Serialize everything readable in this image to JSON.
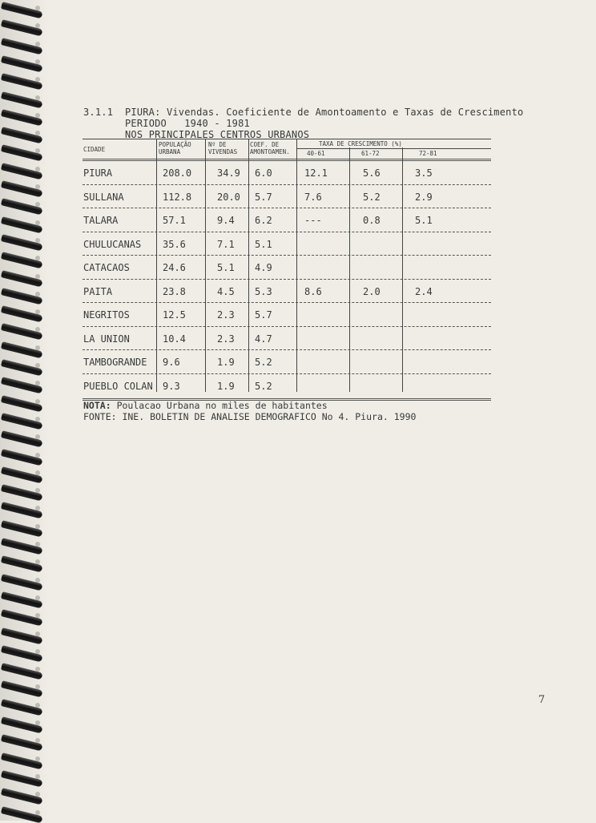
{
  "document": {
    "heading_number": "3.1.1",
    "heading": "PIURA: Vivendas. Coeficiente de Amontoamento e Taxas de Crescimento",
    "period": "PERIODO   1940 - 1981",
    "subtitle": "NOS PRINCIPALES CENTROS URBANOS",
    "page_number": "7"
  },
  "table": {
    "headers": {
      "cidade": "CIDADE",
      "populacao": [
        "POPULAÇÃO",
        "URBANA"
      ],
      "vivendas": [
        "Nº DE",
        "VIVENDAS"
      ],
      "coef": [
        "COEF. DE",
        "AMONTOAMEN."
      ],
      "taxa": "TAXA DE CRESCIMENTO (%)",
      "periods": [
        "40-61",
        "61-72",
        "72-81"
      ]
    },
    "rows": [
      {
        "cidade": "PIURA",
        "pop": "208.0",
        "viv": "34.9",
        "coef": "6.0",
        "t1": "12.1",
        "t2": "5.6",
        "t3": "3.5"
      },
      {
        "cidade": "SULLANA",
        "pop": "112.8",
        "viv": "20.0",
        "coef": "5.7",
        "t1": "7.6",
        "t2": "5.2",
        "t3": "2.9"
      },
      {
        "cidade": "TALARA",
        "pop": "57.1",
        "viv": "9.4",
        "coef": "6.2",
        "t1": "---",
        "t2": "0.8",
        "t3": "5.1"
      },
      {
        "cidade": "CHULUCANAS",
        "pop": "35.6",
        "viv": "7.1",
        "coef": "5.1",
        "t1": "",
        "t2": "",
        "t3": ""
      },
      {
        "cidade": "CATACAOS",
        "pop": "24.6",
        "viv": "5.1",
        "coef": "4.9",
        "t1": "",
        "t2": "",
        "t3": ""
      },
      {
        "cidade": "PAITA",
        "pop": "23.8",
        "viv": "4.5",
        "coef": "5.3",
        "t1": "8.6",
        "t2": "2.0",
        "t3": "2.4"
      },
      {
        "cidade": "NEGRITOS",
        "pop": "12.5",
        "viv": "2.3",
        "coef": "5.7",
        "t1": "",
        "t2": "",
        "t3": ""
      },
      {
        "cidade": "LA UNION",
        "pop": "10.4",
        "viv": "2.3",
        "coef": "4.7",
        "t1": "",
        "t2": "",
        "t3": ""
      },
      {
        "cidade": "TAMBOGRANDE",
        "pop": "9.6",
        "viv": "1.9",
        "coef": "5.2",
        "t1": "",
        "t2": "",
        "t3": ""
      },
      {
        "cidade": "PUEBLO COLAN",
        "pop": "9.3",
        "viv": "1.9",
        "coef": "5.2",
        "t1": "",
        "t2": "",
        "t3": ""
      }
    ]
  },
  "notes": {
    "nota_label": "NOTA:",
    "nota": "Poulacao Urbana no miles de habitantes",
    "fonte": "FONTE: INE. BOLETIN DE ANALISE DEMOGRAFICO No 4. Piura. 1990"
  }
}
